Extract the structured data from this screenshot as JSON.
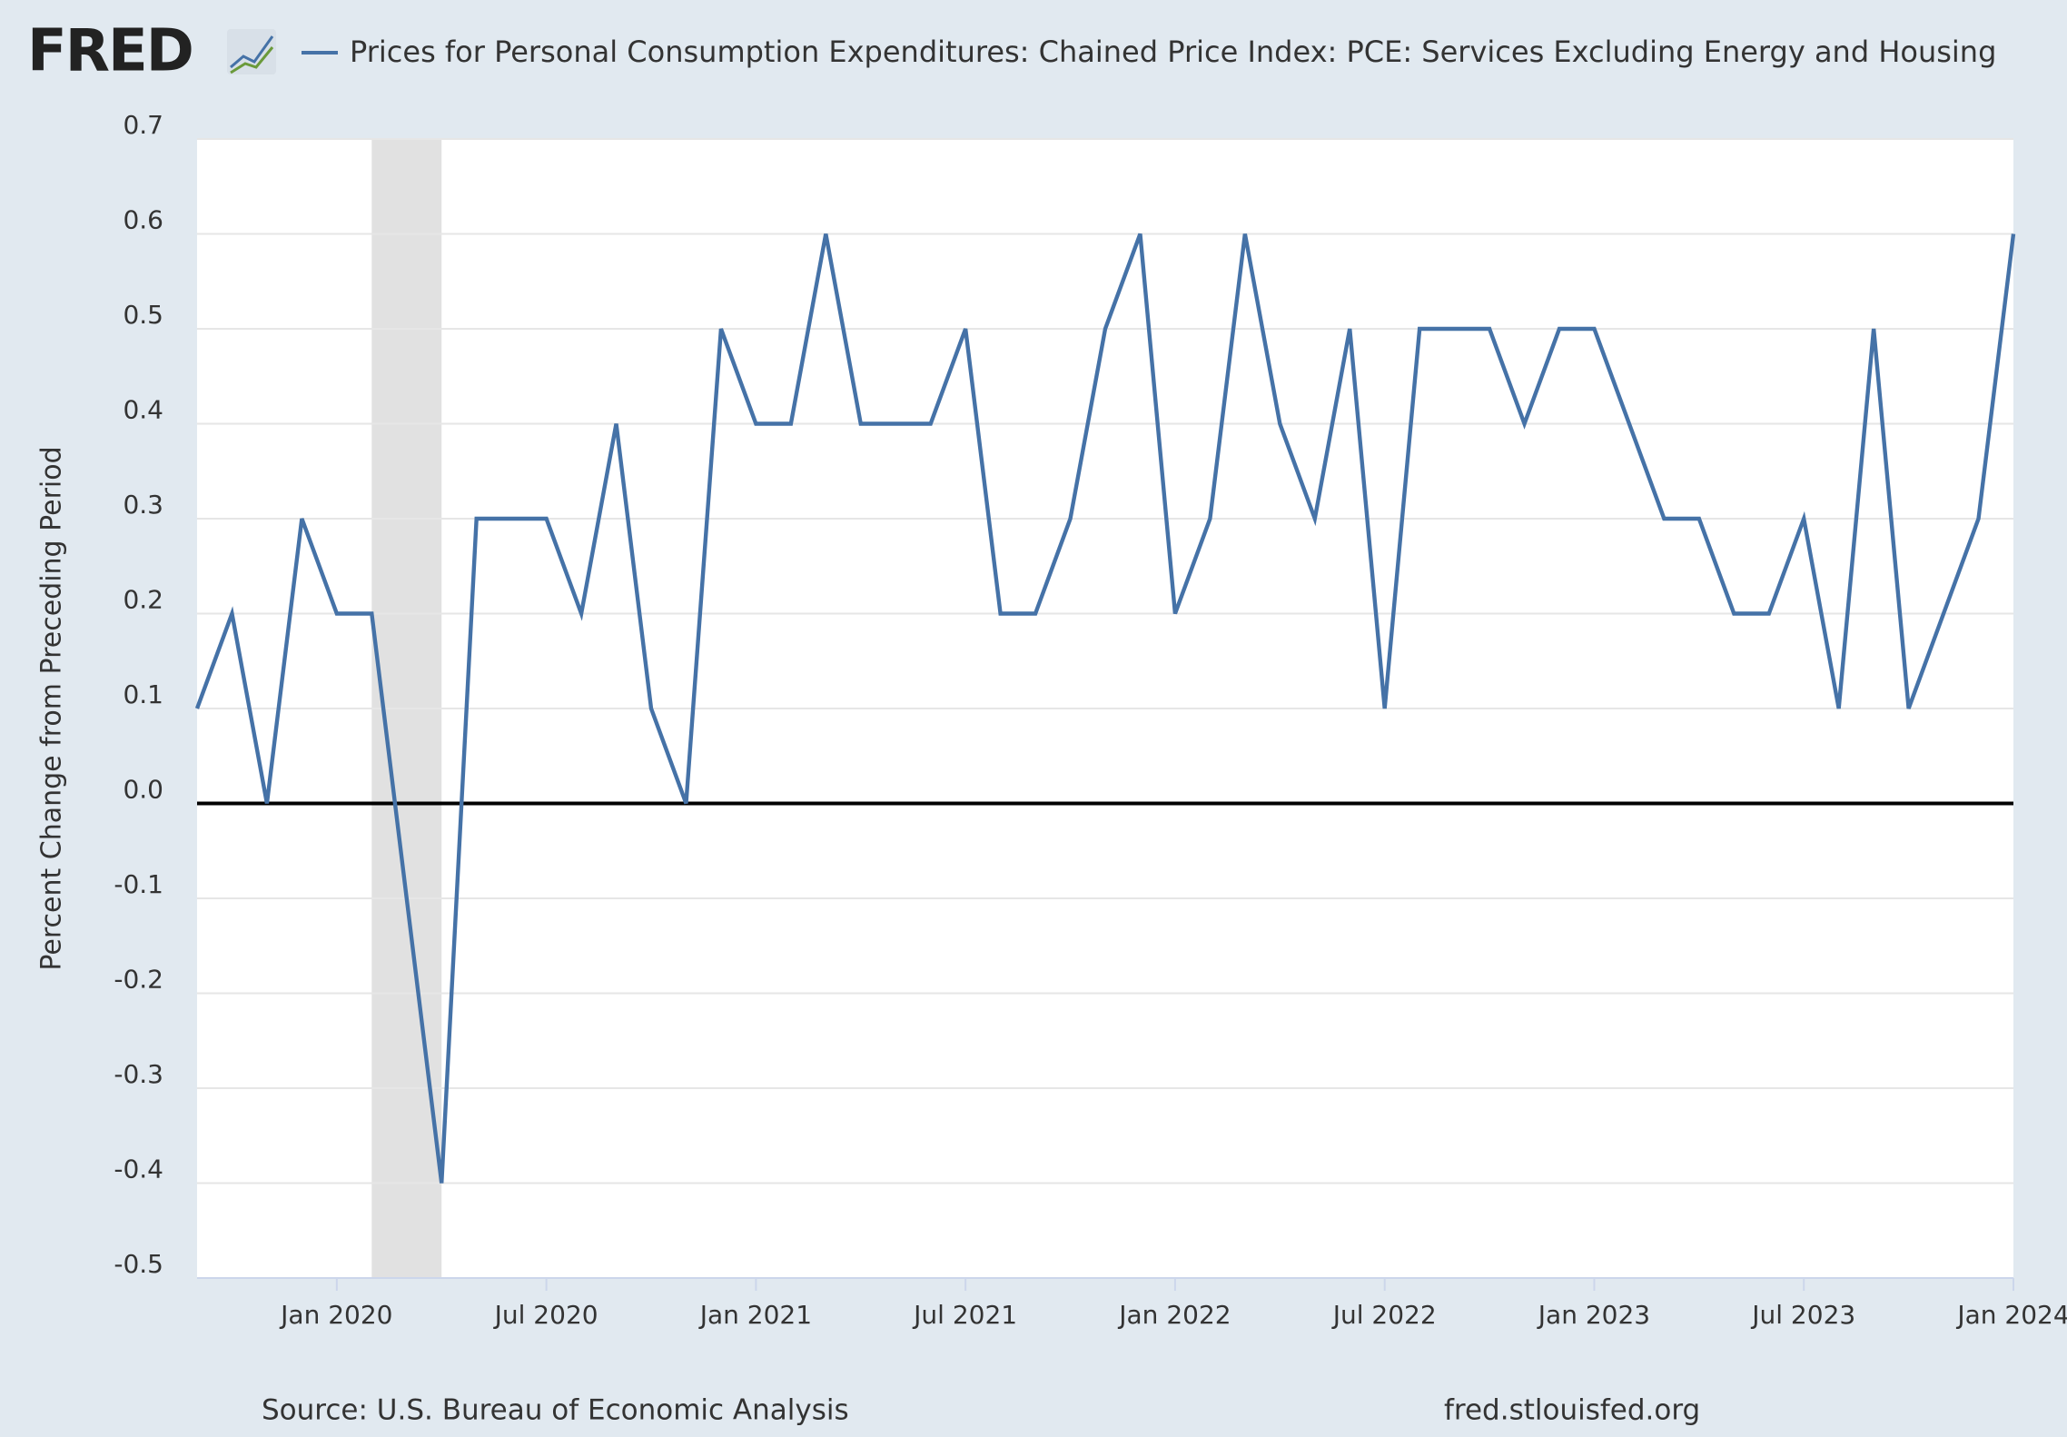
{
  "chart_data": {
    "type": "line",
    "logo": "FRED",
    "ylabel": "Percent Change from Preceding Period",
    "source": "Source: U.S. Bureau of Economic Analysis",
    "site": "fred.stlouisfed.org",
    "x": [
      "2019-09",
      "2019-10",
      "2019-11",
      "2019-12",
      "2020-01",
      "2020-02",
      "2020-03",
      "2020-04",
      "2020-05",
      "2020-06",
      "2020-07",
      "2020-08",
      "2020-09",
      "2020-10",
      "2020-11",
      "2020-12",
      "2021-01",
      "2021-02",
      "2021-03",
      "2021-04",
      "2021-05",
      "2021-06",
      "2021-07",
      "2021-08",
      "2021-09",
      "2021-10",
      "2021-11",
      "2021-12",
      "2022-01",
      "2022-02",
      "2022-03",
      "2022-04",
      "2022-05",
      "2022-06",
      "2022-07",
      "2022-08",
      "2022-09",
      "2022-10",
      "2022-11",
      "2022-12",
      "2023-01",
      "2023-02",
      "2023-03",
      "2023-04",
      "2023-05",
      "2023-06",
      "2023-07",
      "2023-08",
      "2023-09",
      "2023-10",
      "2023-11",
      "2023-12",
      "2024-01"
    ],
    "series": [
      {
        "name": "Prices for Personal Consumption Expenditures: Chained Price Index: PCE: Services Excluding Energy and Housing",
        "color": "#4572a7",
        "values": [
          0.1,
          0.2,
          0.0,
          0.3,
          0.2,
          0.2,
          -0.1,
          -0.4,
          0.3,
          0.3,
          0.3,
          0.2,
          0.4,
          0.1,
          0.0,
          0.5,
          0.4,
          0.4,
          0.6,
          0.4,
          0.4,
          0.4,
          0.5,
          0.2,
          0.2,
          0.3,
          0.5,
          0.6,
          0.2,
          0.3,
          0.6,
          0.4,
          0.3,
          0.5,
          0.1,
          0.5,
          0.5,
          0.5,
          0.4,
          0.5,
          0.5,
          0.4,
          0.3,
          0.3,
          0.2,
          0.2,
          0.3,
          0.1,
          0.5,
          0.1,
          0.2,
          0.3,
          0.6
        ]
      }
    ],
    "xlim": [
      "2019-09",
      "2024-01"
    ],
    "xticks": [
      {
        "value": "2020-01",
        "label": "Jan 2020"
      },
      {
        "value": "2020-07",
        "label": "Jul 2020"
      },
      {
        "value": "2021-01",
        "label": "Jan 2021"
      },
      {
        "value": "2021-07",
        "label": "Jul 2021"
      },
      {
        "value": "2022-01",
        "label": "Jan 2022"
      },
      {
        "value": "2022-07",
        "label": "Jul 2022"
      },
      {
        "value": "2023-01",
        "label": "Jan 2023"
      },
      {
        "value": "2023-07",
        "label": "Jul 2023"
      },
      {
        "value": "2024-01",
        "label": "Jan 2024"
      }
    ],
    "ylim": [
      -0.5,
      0.7
    ],
    "yticks": [
      -0.5,
      -0.4,
      -0.3,
      -0.2,
      -0.1,
      {
        "value": 0,
        "label": "0.0"
      },
      0.1,
      0.2,
      0.3,
      0.4,
      0.5,
      0.6,
      0.7
    ],
    "grid": true,
    "recessions": [
      [
        "2020-02",
        "2020-04"
      ]
    ]
  }
}
